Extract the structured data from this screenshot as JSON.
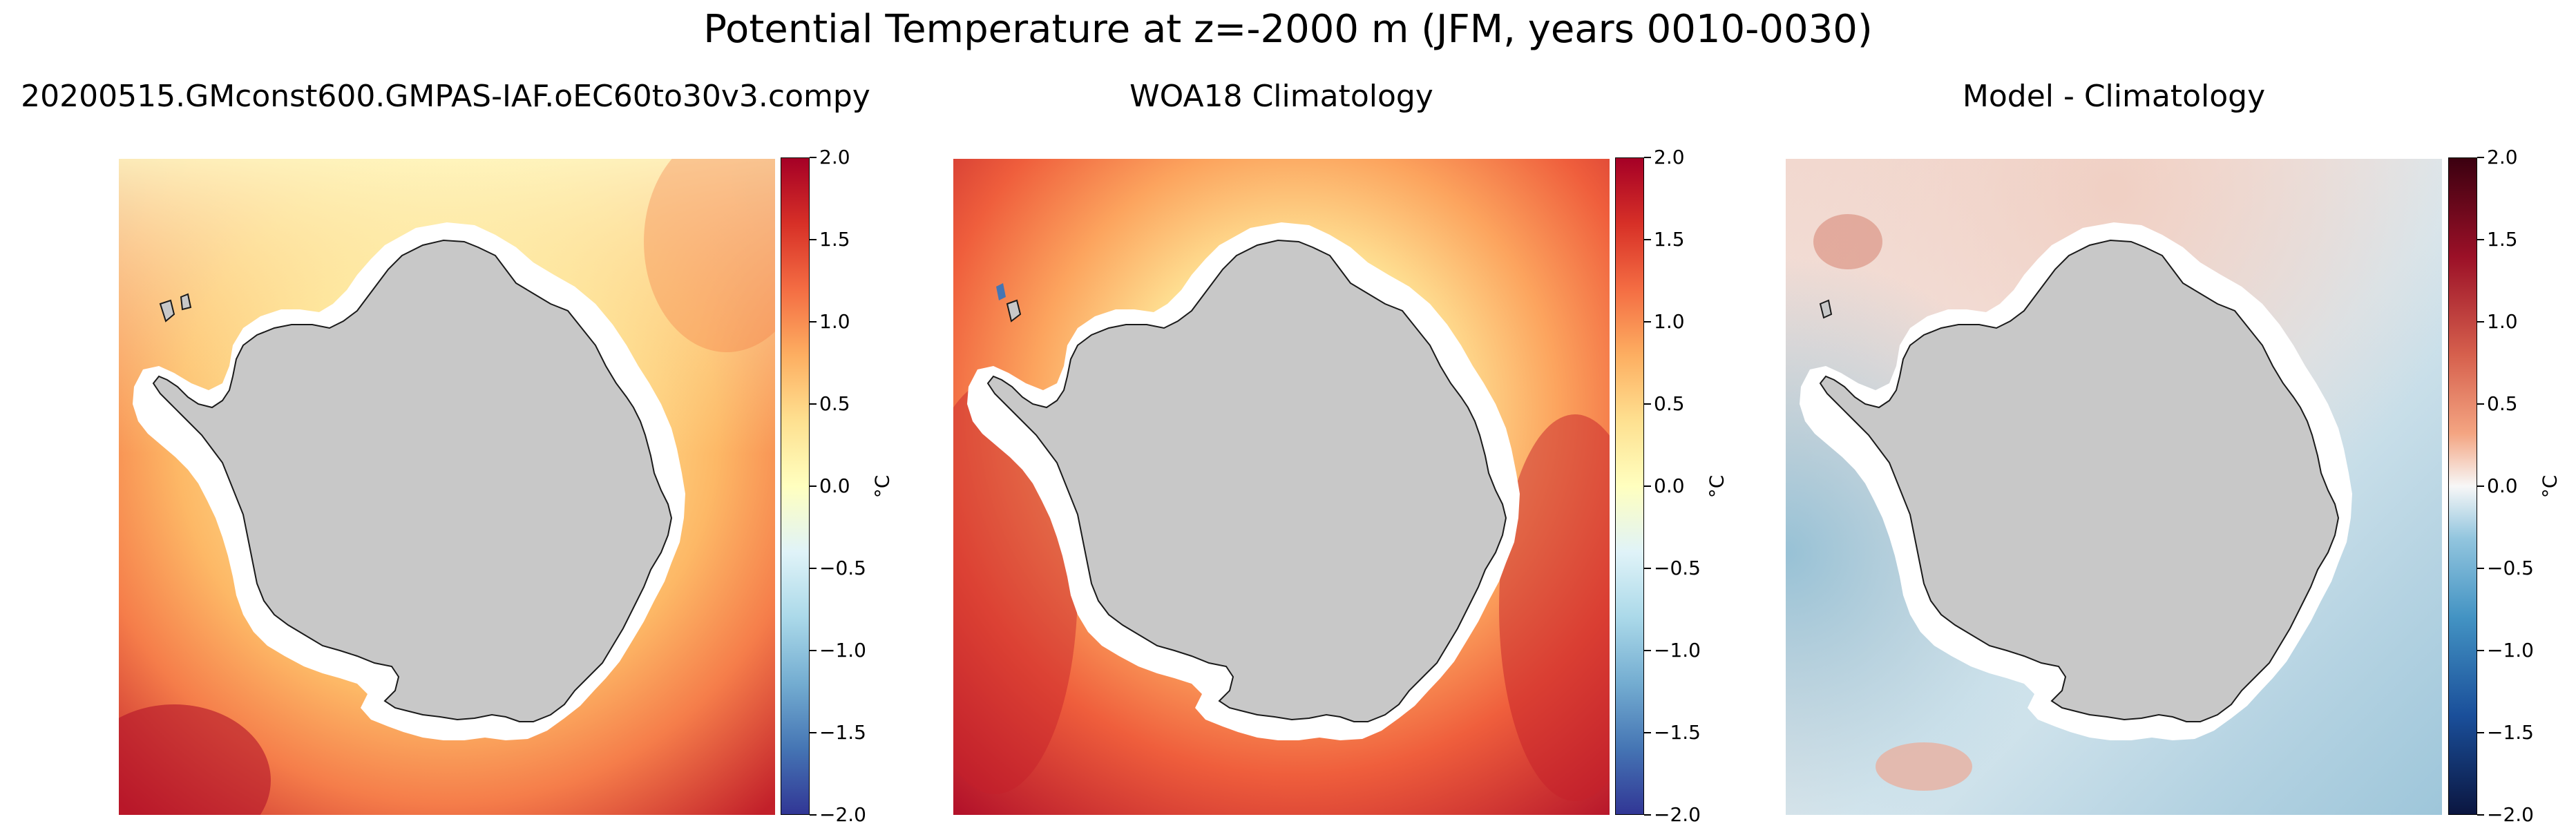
{
  "figure": {
    "title": "Potential Temperature at z=-2000 m (JFM, years 0010-0030)"
  },
  "panels": [
    {
      "title": "20200515.GMconst600.GMPAS-IAF.oEC60to30v3.compy",
      "colormap": "RdYlBu_r",
      "colorbar": {
        "min": -2.0,
        "max": 2.0,
        "unit": "°C",
        "ticks": [
          "2.0",
          "1.5",
          "1.0",
          "0.5",
          "0.0",
          "−0.5",
          "−1.0",
          "−1.5",
          "−2.0"
        ]
      }
    },
    {
      "title": "WOA18 Climatology",
      "colormap": "RdYlBu_r",
      "colorbar": {
        "min": -2.0,
        "max": 2.0,
        "unit": "°C",
        "ticks": [
          "2.0",
          "1.5",
          "1.0",
          "0.5",
          "0.0",
          "−0.5",
          "−1.0",
          "−1.5",
          "−2.0"
        ]
      }
    },
    {
      "title": "Model - Climatology",
      "colormap": "RdBu_r",
      "colorbar": {
        "min": -2.0,
        "max": 2.0,
        "unit": "°C",
        "ticks": [
          "2.0",
          "1.5",
          "1.0",
          "0.5",
          "0.0",
          "−0.5",
          "−1.0",
          "−1.5",
          "−2.0"
        ]
      }
    }
  ],
  "colors": {
    "land": "#c8c8c8",
    "coastline": "#1a1a1a",
    "ice_shelf_gap": "#ffffff"
  }
}
